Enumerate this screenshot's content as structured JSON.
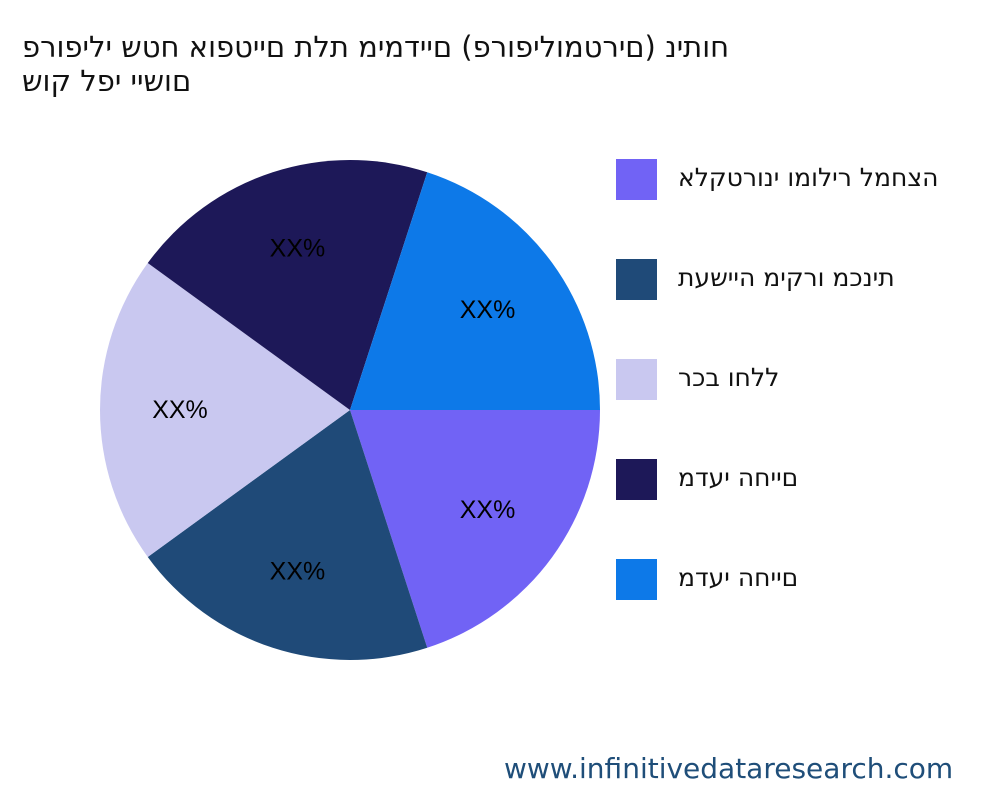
{
  "chart_data": {
    "type": "pie",
    "title_lines": [
      "חותינ (םירטמוליפורפ) םיידמימ תלת םייטפוא חטש יליפורפ",
      "םושיי יפל קוש"
    ],
    "slices": [
      {
        "label": "הצחמל רילומו ינורטקלא",
        "value": 20,
        "data_label": "XX%",
        "color": "#7163f5"
      },
      {
        "label": "תינכמ ורקימ היישעת",
        "value": 20,
        "data_label": "XX%",
        "color": "#1f4a78"
      },
      {
        "label": "ללחו בכר",
        "value": 20,
        "data_label": "XX%",
        "color": "#c9c8f0"
      },
      {
        "label": "םייחה יעדמ",
        "value": 20,
        "data_label": "XX%",
        "color": "#1d1858"
      },
      {
        "label": "םייחה יעדמ",
        "value": 20,
        "data_label": "XX%",
        "color": "#0d79e8"
      }
    ],
    "legend_position": "right"
  },
  "footer": {
    "source": "www.infinitivedataresearch.com"
  }
}
